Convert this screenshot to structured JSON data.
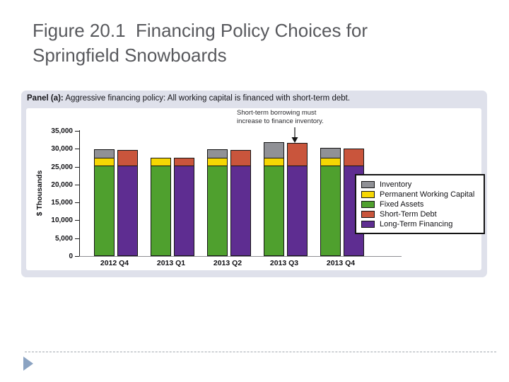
{
  "slide": {
    "title": "Figure 20.1  Financing Policy Choices for Springfield Snowboards"
  },
  "panel": {
    "title_bold": "Panel (a):",
    "title_rest": " Aggressive financing policy: All working capital is financed with short-term debt."
  },
  "chart_data": {
    "type": "bar",
    "stacked": true,
    "title": "Panel (a): Aggressive financing policy: All working capital is financed with short-term debt.",
    "ylabel": "$ Thousands",
    "ylim": [
      0,
      35000
    ],
    "ytick_interval": 5000,
    "ytick_labels": [
      "35,000",
      "30,000",
      "25,000",
      "20,000",
      "15,000",
      "10,000",
      "5,000",
      "0"
    ],
    "categories": [
      "2012 Q4",
      "2013 Q1",
      "2013 Q2",
      "2013 Q3",
      "2013 Q4"
    ],
    "grid": false,
    "legend_position": "right",
    "annotation": "Short-term borrowing must increase to finance inventory.",
    "annotation_lines": [
      "Short-term borrowing must",
      "increase to finance inventory."
    ],
    "annotation_points_to": "2013 Q3 Short-Term Debt bar",
    "bar_groups_per_category": [
      "assets",
      "financing"
    ],
    "series": [
      {
        "name": "Inventory",
        "bar": "assets",
        "color": "#909196",
        "values": [
          2000,
          0,
          2000,
          4000,
          2500
        ]
      },
      {
        "name": "Permanent Working Capital",
        "bar": "assets",
        "color": "#f6d703",
        "values": [
          2000,
          2000,
          2000,
          2000,
          2000
        ]
      },
      {
        "name": "Fixed Assets",
        "bar": "assets",
        "color": "#4fa02e",
        "values": [
          25000,
          25000,
          25000,
          25000,
          25000
        ]
      },
      {
        "name": "Short-Term Debt",
        "bar": "financing",
        "color": "#c9553c",
        "values": [
          4000,
          2000,
          4000,
          6000,
          4500
        ]
      },
      {
        "name": "Long-Term Financing",
        "bar": "financing",
        "color": "#5e2d91",
        "values": [
          25000,
          25000,
          25000,
          25000,
          25000
        ]
      }
    ]
  },
  "footer": {
    "next_arrow_icon": "right-triangle"
  }
}
